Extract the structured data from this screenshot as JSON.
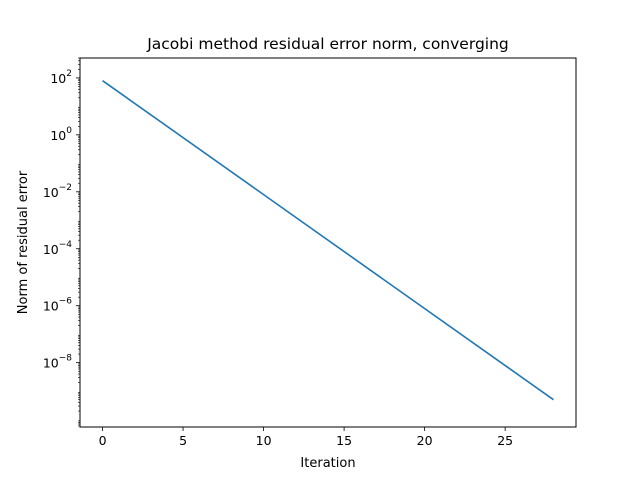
{
  "chart_data": {
    "type": "line",
    "title": "Jacobi method residual error norm, converging",
    "xlabel": "Iteration",
    "ylabel": "Norm of residual error",
    "yscale": "log",
    "xlim": [
      -1.4,
      29.4
    ],
    "ylim": [
      5.5e-11,
      500
    ],
    "x_ticks": [
      0,
      5,
      10,
      15,
      20,
      25
    ],
    "y_ticks": [
      {
        "base": "10",
        "exp": "2",
        "value": 100
      },
      {
        "base": "10",
        "exp": "0",
        "value": 1
      },
      {
        "base": "10",
        "exp": "−2",
        "value": 0.01
      },
      {
        "base": "10",
        "exp": "−4",
        "value": 0.0001
      },
      {
        "base": "10",
        "exp": "−6",
        "value": 1e-06
      },
      {
        "base": "10",
        "exp": "−8",
        "value": 1e-08
      }
    ],
    "grid": false,
    "series": [
      {
        "color": "#1f77b4",
        "x": [
          0,
          28
        ],
        "y": [
          80,
          5e-10
        ]
      }
    ]
  }
}
